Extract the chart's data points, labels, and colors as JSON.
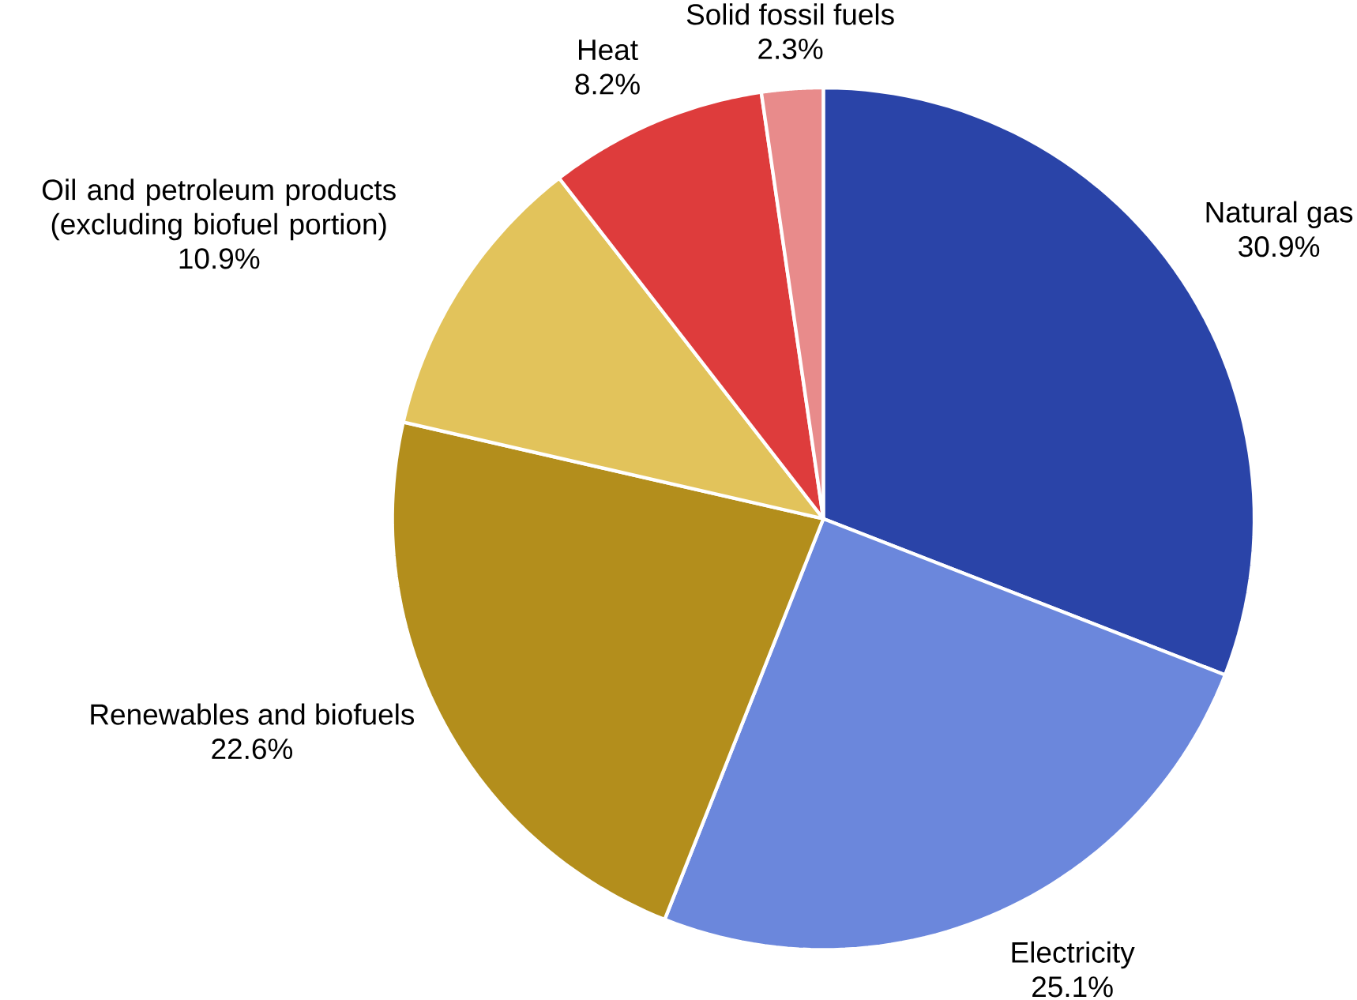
{
  "chart_data": {
    "type": "pie",
    "categories": [
      "Natural gas",
      "Electricity",
      "Renewables and biofuels",
      "Oil and petroleum products (excluding biofuel portion)",
      "Heat",
      "Solid fossil fuels"
    ],
    "values": [
      30.9,
      25.1,
      22.6,
      10.9,
      8.2,
      2.3
    ],
    "value_labels": [
      "30.9%",
      "25.1%",
      "22.6%",
      "10.9%",
      "8.2%",
      "2.3%"
    ],
    "colors": [
      "#2a44a8",
      "#6b87dc",
      "#b38e1c",
      "#e2c35b",
      "#de3c3c",
      "#e88b8b"
    ]
  }
}
